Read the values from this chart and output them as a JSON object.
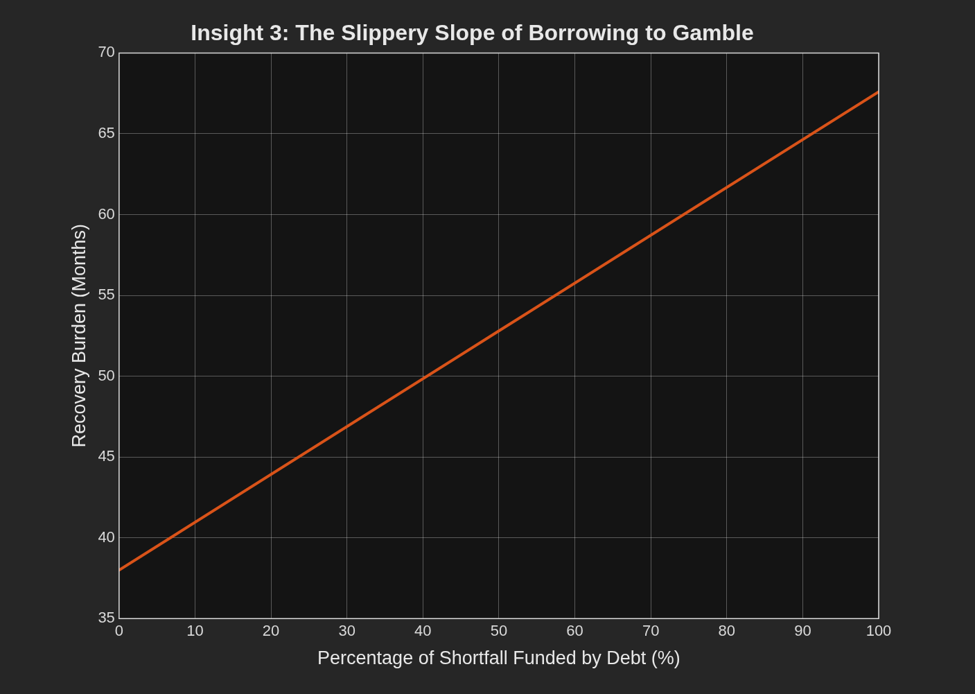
{
  "chart_data": {
    "type": "line",
    "title": "Insight 3: The Slippery Slope of Borrowing to Gamble",
    "xlabel": "Percentage of Shortfall Funded by Debt (%)",
    "ylabel": "Recovery Burden (Months)",
    "x": [
      0,
      50,
      100
    ],
    "series": [
      {
        "color": "#d95319",
        "values": [
          38,
          52.8,
          67.6
        ]
      }
    ],
    "xlim": [
      0,
      100
    ],
    "xticks": [
      0,
      10,
      20,
      30,
      40,
      50,
      60,
      70,
      80,
      90,
      100
    ],
    "ylim": [
      35,
      70
    ],
    "yticks": [
      35,
      40,
      45,
      50,
      55,
      60,
      65,
      70
    ],
    "grid": true,
    "legend": false,
    "marker": "none",
    "line_style": "solid"
  }
}
